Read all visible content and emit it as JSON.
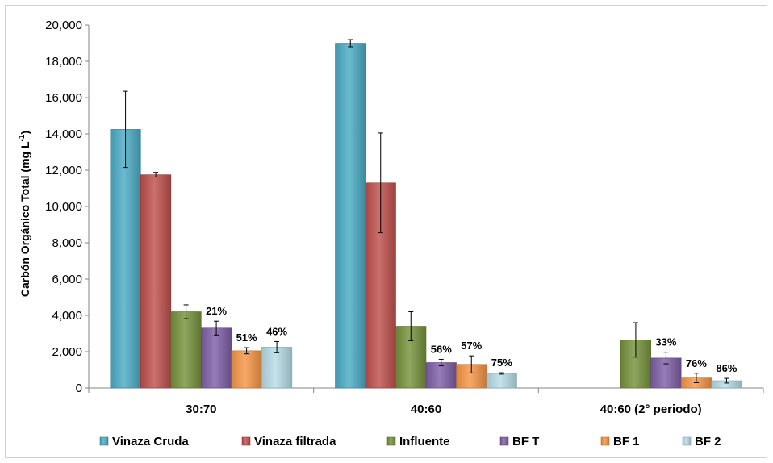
{
  "chart_data": {
    "type": "bar",
    "categories": [
      "30:70",
      "40:60",
      "40:60 (2° periodo)"
    ],
    "ylabel": "Carbón Orgánico Total (mg L",
    "ylabel_sup": "-1",
    "ylabel_close": ")",
    "ylim": [
      0,
      20000
    ],
    "yticks": [
      0,
      2000,
      4000,
      6000,
      8000,
      10000,
      12000,
      14000,
      16000,
      18000,
      20000
    ],
    "ytick_labels": [
      "0",
      "2,000",
      "4,000",
      "6,000",
      "8,000",
      "10,000",
      "12,000",
      "14,000",
      "16,000",
      "18,000",
      "20,000"
    ],
    "grid": false,
    "legend_position": "bottom",
    "series": [
      {
        "name": "Vinaza  Cruda",
        "color": "#4BACC6",
        "values": [
          14250,
          19000,
          null
        ],
        "errors": [
          2100,
          200,
          null
        ],
        "labels": [
          "",
          "",
          ""
        ]
      },
      {
        "name": "Vinaza filtrada",
        "color": "#C0504D",
        "values": [
          11750,
          11300,
          null
        ],
        "errors": [
          130,
          2750,
          null
        ],
        "labels": [
          "",
          "",
          ""
        ]
      },
      {
        "name": "Influente",
        "color": "#77933C",
        "values": [
          4200,
          3400,
          2650
        ],
        "errors": [
          380,
          800,
          950
        ],
        "labels": [
          "",
          "",
          ""
        ]
      },
      {
        "name": "BF T",
        "color": "#7F5FA8",
        "values": [
          3300,
          1400,
          1650
        ],
        "errors": [
          380,
          180,
          320
        ],
        "labels": [
          "21%",
          "56%",
          "33%"
        ]
      },
      {
        "name": "BF 1",
        "color": "#F79646",
        "values": [
          2050,
          1300,
          550
        ],
        "errors": [
          170,
          470,
          260
        ],
        "labels": [
          "51%",
          "57%",
          "76%"
        ]
      },
      {
        "name": "BF 2",
        "color": "#B7DDE8",
        "values": [
          2250,
          800,
          400
        ],
        "errors": [
          310,
          40,
          130
        ],
        "labels": [
          "46%",
          "75%",
          "86%"
        ]
      }
    ]
  }
}
